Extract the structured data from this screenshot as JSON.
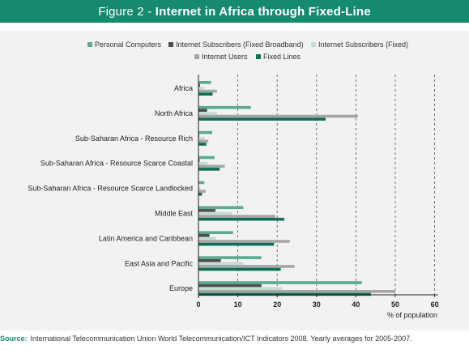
{
  "figure": {
    "prefix": "Figure 2 - ",
    "title": "Internet in Africa through Fixed-Line"
  },
  "source": {
    "label": "Source:",
    "text": "International Telecommunication Union World Telecommunication/ICT Indicators 2008. Yearly averages for 2005-2007."
  },
  "chart_data": {
    "type": "bar",
    "orientation": "horizontal",
    "categories": [
      "Africa",
      "North Africa",
      "Sub-Saharan Africa - Resource Rich",
      "Sub-Saharan Africa - Resource Scarce Coastal",
      "Sub-Saharan Africa - Resource Scarce Landlocked",
      "Middle East",
      "Latin America and Caribbean",
      "East Asia and Pacific",
      "Europe"
    ],
    "series": [
      {
        "name": "Personal Computers",
        "color": "#5aab8e",
        "values": [
          3.2,
          13.3,
          3.5,
          4.1,
          1.5,
          11.4,
          8.8,
          16.0,
          41.5
        ]
      },
      {
        "name": "Internet Subscribers (Fixed Broadband)",
        "color": "#4d4d4d",
        "values": [
          0.4,
          2.2,
          0.2,
          0.3,
          0.1,
          4.3,
          2.8,
          5.7,
          16.0
        ]
      },
      {
        "name": "Internet Subscribers (Fixed)",
        "color": "#c6ddd4",
        "values": [
          1.5,
          4.7,
          1.6,
          2.3,
          0.5,
          8.5,
          4.5,
          11.4,
          21.3
        ]
      },
      {
        "name": "Internet Users",
        "color": "#a6a6a6",
        "values": [
          4.7,
          40.5,
          2.5,
          6.7,
          1.8,
          19.5,
          23.2,
          24.4,
          50.0
        ]
      },
      {
        "name": "Fixed Lines",
        "color": "#0e6e56",
        "values": [
          3.6,
          32.3,
          2.0,
          5.4,
          0.9,
          21.8,
          19.2,
          20.9,
          43.8
        ]
      }
    ],
    "x_ticks": [
      0,
      10,
      20,
      30,
      40,
      50,
      60
    ],
    "xlim": [
      0,
      60
    ],
    "xlabel": "% of population",
    "grid": "vertical dashed",
    "legend_position": "top"
  }
}
